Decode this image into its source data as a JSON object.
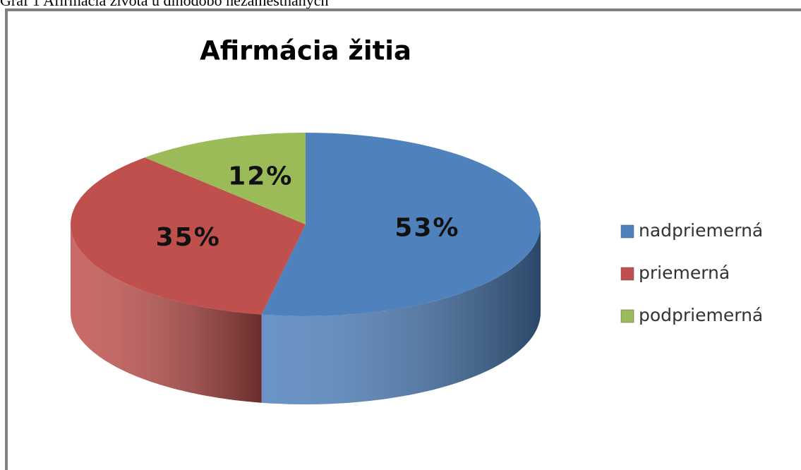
{
  "caption": "Graf 1 Afirmácia života u dlhodobo nezamestnaných",
  "chart_data": {
    "type": "pie3d",
    "title": "Afirmácia žitia",
    "categories": [
      "nadpriemerná",
      "priemerná",
      "podpriemerná"
    ],
    "values": [
      53,
      35,
      12
    ],
    "value_labels": [
      "53%",
      "35%",
      "12%"
    ],
    "colors": [
      "#4f81bd",
      "#c0504d",
      "#9bbb59"
    ],
    "legend": "right"
  }
}
